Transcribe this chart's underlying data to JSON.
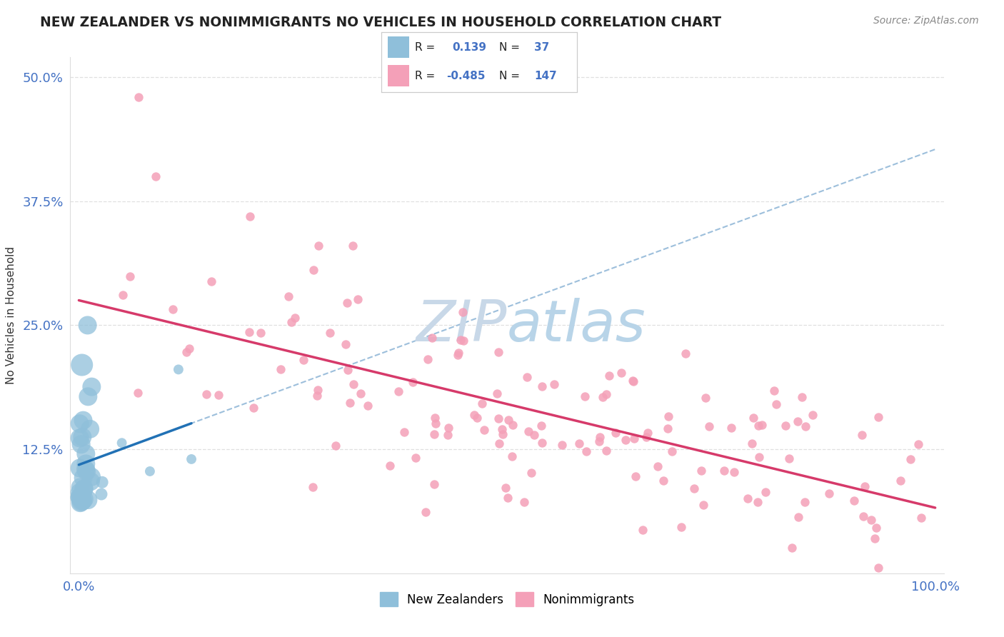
{
  "title": "NEW ZEALANDER VS NONIMMIGRANTS NO VEHICLES IN HOUSEHOLD CORRELATION CHART",
  "source": "Source: ZipAtlas.com",
  "ylabel": "No Vehicles in Household",
  "R_nz": 0.139,
  "N_nz": 37,
  "R_ni": -0.485,
  "N_ni": 147,
  "blue_color": "#8fbfda",
  "pink_color": "#f4a0b8",
  "blue_line_color": "#2171b5",
  "pink_line_color": "#d63a6a",
  "dashed_line_color": "#92b8d8",
  "watermark_color": "#c8d8e8",
  "background_color": "#ffffff",
  "grid_color": "#e0e0e0",
  "tick_color": "#4472c4",
  "label_color": "#333333",
  "source_color": "#888888",
  "legend_text_color": "#222222",
  "legend_value_color": "#4472c4"
}
